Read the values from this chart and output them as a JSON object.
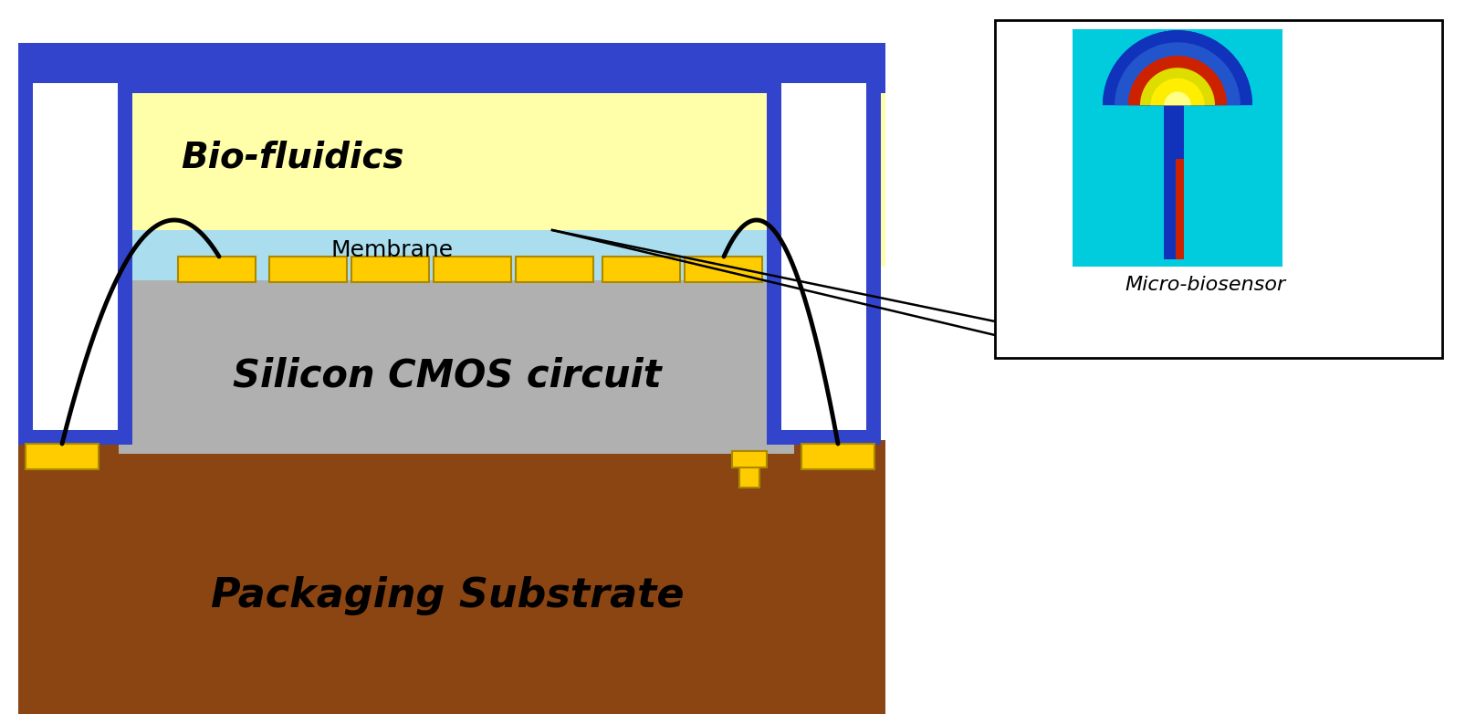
{
  "bg_color": "#ffffff",
  "fig_w": 16.17,
  "fig_h": 7.82,
  "substrate_color": "#8B4513",
  "cmos_color": "#b0b0b0",
  "membrane_color": "#aaddee",
  "biofluidics_color": "#ffffaa",
  "blue_frame_color": "#3344cc",
  "pad_color": "#ffcc00",
  "pad_edge_color": "#aa8800",
  "substrate_text": "Packaging Substrate",
  "cmos_text": "Silicon CMOS circuit",
  "membrane_text": "Membrane",
  "biofluidics_text": "Bio-fluidics",
  "micro_biosensor_text": "Micro-biosensor"
}
